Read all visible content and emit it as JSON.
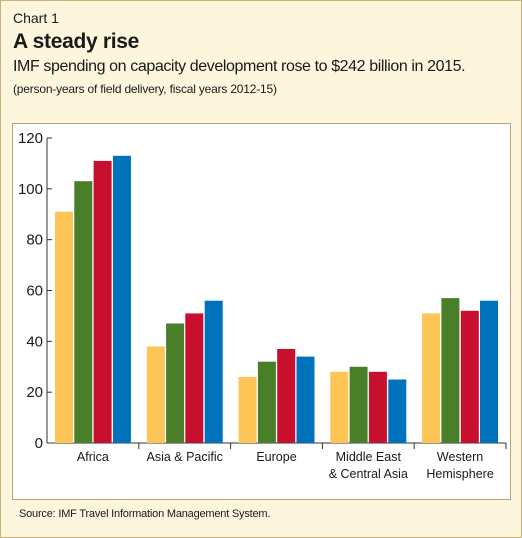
{
  "header": {
    "chart_number": "Chart 1",
    "title": "A steady rise",
    "subtitle": "IMF spending on capacity development rose to $242 billion in 2015.",
    "note": "(person-years of field delivery, fiscal years 2012-15)"
  },
  "source": "Source: IMF Travel Information Management System.",
  "colors": {
    "background": "#fdf5dc",
    "series": [
      "#fcc556",
      "#4a7f2a",
      "#c8102e",
      "#0072bc"
    ]
  },
  "chart_data": {
    "type": "bar",
    "categories": [
      [
        "Africa"
      ],
      [
        "Asia & Pacific"
      ],
      [
        "Europe"
      ],
      [
        "Middle East",
        "& Central Asia"
      ],
      [
        "Western",
        "Hemisphere"
      ]
    ],
    "series": [
      {
        "values": [
          91,
          38,
          26,
          28,
          51
        ]
      },
      {
        "values": [
          103,
          47,
          32,
          30,
          57
        ]
      },
      {
        "values": [
          111,
          51,
          37,
          28,
          52
        ]
      },
      {
        "values": [
          113,
          56,
          34,
          25,
          56
        ]
      }
    ],
    "ylim": [
      0,
      120
    ],
    "yticks": [
      0,
      20,
      40,
      60,
      80,
      100,
      120
    ],
    "xlabel": "",
    "ylabel": "",
    "grid": false
  }
}
